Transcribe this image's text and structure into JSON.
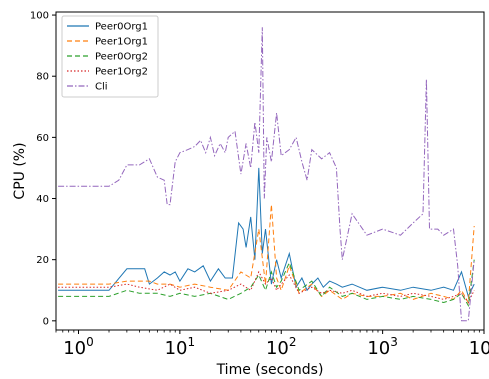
{
  "chart_data": {
    "type": "line",
    "title": "",
    "xlabel": "Time (seconds)",
    "ylabel": "CPU (%)",
    "xscale": "log",
    "xlim": [
      0.6,
      10000
    ],
    "ylim": [
      -3,
      101
    ],
    "x_ticks": [
      {
        "base": "10",
        "exp": "0"
      },
      {
        "base": "10",
        "exp": "1"
      },
      {
        "base": "10",
        "exp": "2"
      },
      {
        "base": "10",
        "exp": "3"
      },
      {
        "base": "10",
        "exp": "4"
      }
    ],
    "x_tick_values": [
      1,
      10,
      100,
      1000,
      10000
    ],
    "y_ticks": [
      "0",
      "20",
      "40",
      "60",
      "80",
      "100"
    ],
    "y_tick_values": [
      0,
      20,
      40,
      60,
      80,
      100
    ],
    "grid": false,
    "legend_position": "top-left",
    "series": [
      {
        "name": "Peer0Org1",
        "color": "#1f77b4",
        "dash": "solid",
        "points": [
          [
            0.63,
            10
          ],
          [
            2,
            10
          ],
          [
            3,
            17
          ],
          [
            4.5,
            17
          ],
          [
            5,
            12
          ],
          [
            6,
            14
          ],
          [
            7,
            16
          ],
          [
            8,
            15
          ],
          [
            9,
            16
          ],
          [
            10,
            13
          ],
          [
            12,
            17
          ],
          [
            14,
            16
          ],
          [
            17,
            18
          ],
          [
            20,
            13
          ],
          [
            24,
            17
          ],
          [
            28,
            14
          ],
          [
            33,
            14
          ],
          [
            38,
            32
          ],
          [
            42,
            30
          ],
          [
            45,
            24
          ],
          [
            50,
            34
          ],
          [
            55,
            20
          ],
          [
            60,
            50
          ],
          [
            65,
            22
          ],
          [
            70,
            30
          ],
          [
            80,
            12
          ],
          [
            90,
            20
          ],
          [
            100,
            14
          ],
          [
            120,
            22
          ],
          [
            140,
            11
          ],
          [
            160,
            14
          ],
          [
            180,
            10
          ],
          [
            200,
            12
          ],
          [
            230,
            14
          ],
          [
            260,
            11
          ],
          [
            300,
            13
          ],
          [
            350,
            12
          ],
          [
            400,
            11
          ],
          [
            500,
            12
          ],
          [
            700,
            10
          ],
          [
            1000,
            11
          ],
          [
            1500,
            10
          ],
          [
            2000,
            11
          ],
          [
            3000,
            10
          ],
          [
            4000,
            11
          ],
          [
            5000,
            10
          ],
          [
            6000,
            16
          ],
          [
            7000,
            8
          ],
          [
            8000,
            12
          ]
        ]
      },
      {
        "name": "Peer1Org1",
        "color": "#ff7f0e",
        "dash": "dashed",
        "points": [
          [
            0.63,
            12
          ],
          [
            2,
            12
          ],
          [
            3,
            13
          ],
          [
            5,
            13
          ],
          [
            6,
            12
          ],
          [
            8,
            12
          ],
          [
            10,
            11
          ],
          [
            14,
            12
          ],
          [
            20,
            11
          ],
          [
            30,
            10
          ],
          [
            40,
            16
          ],
          [
            50,
            14
          ],
          [
            60,
            30
          ],
          [
            70,
            12
          ],
          [
            80,
            38
          ],
          [
            90,
            14
          ],
          [
            100,
            10
          ],
          [
            120,
            18
          ],
          [
            150,
            9
          ],
          [
            200,
            12
          ],
          [
            250,
            8
          ],
          [
            300,
            10
          ],
          [
            400,
            7
          ],
          [
            500,
            9
          ],
          [
            700,
            8
          ],
          [
            1000,
            8
          ],
          [
            1500,
            9
          ],
          [
            2000,
            7
          ],
          [
            3000,
            9
          ],
          [
            4000,
            8
          ],
          [
            5000,
            7
          ],
          [
            6000,
            10
          ],
          [
            7000,
            6
          ],
          [
            8000,
            31
          ]
        ]
      },
      {
        "name": "Peer0Org2",
        "color": "#2ca02c",
        "dash": "dashed",
        "points": [
          [
            0.63,
            8
          ],
          [
            2,
            8
          ],
          [
            3,
            10
          ],
          [
            4,
            9
          ],
          [
            6,
            9
          ],
          [
            8,
            8
          ],
          [
            10,
            9
          ],
          [
            14,
            8
          ],
          [
            20,
            9
          ],
          [
            30,
            7
          ],
          [
            40,
            9
          ],
          [
            50,
            11
          ],
          [
            60,
            15
          ],
          [
            70,
            10
          ],
          [
            80,
            16
          ],
          [
            90,
            11
          ],
          [
            100,
            13
          ],
          [
            120,
            19
          ],
          [
            150,
            10
          ],
          [
            200,
            13
          ],
          [
            250,
            8
          ],
          [
            300,
            11
          ],
          [
            400,
            8
          ],
          [
            500,
            9
          ],
          [
            700,
            7
          ],
          [
            1000,
            8
          ],
          [
            1500,
            7
          ],
          [
            2000,
            8
          ],
          [
            3000,
            7
          ],
          [
            4000,
            6
          ],
          [
            5000,
            7
          ],
          [
            6000,
            9
          ],
          [
            7000,
            5
          ],
          [
            8000,
            20
          ]
        ]
      },
      {
        "name": "Peer1Org2",
        "color": "#d62728",
        "dash": "dotted",
        "points": [
          [
            0.63,
            11
          ],
          [
            2,
            11
          ],
          [
            3,
            12
          ],
          [
            4,
            11
          ],
          [
            6,
            10
          ],
          [
            8,
            12
          ],
          [
            10,
            10
          ],
          [
            14,
            11
          ],
          [
            20,
            9
          ],
          [
            30,
            10
          ],
          [
            40,
            12
          ],
          [
            50,
            10
          ],
          [
            60,
            16
          ],
          [
            70,
            12
          ],
          [
            80,
            14
          ],
          [
            90,
            10
          ],
          [
            100,
            12
          ],
          [
            120,
            15
          ],
          [
            150,
            9
          ],
          [
            200,
            11
          ],
          [
            250,
            9
          ],
          [
            300,
            10
          ],
          [
            400,
            9
          ],
          [
            500,
            10
          ],
          [
            700,
            8
          ],
          [
            1000,
            9
          ],
          [
            1500,
            8
          ],
          [
            2000,
            9
          ],
          [
            3000,
            8
          ],
          [
            4000,
            7
          ],
          [
            5000,
            8
          ],
          [
            6000,
            9
          ],
          [
            7000,
            6
          ],
          [
            8000,
            10
          ]
        ]
      },
      {
        "name": "Cli",
        "color": "#9467bd",
        "dash": "dashdot",
        "points": [
          [
            0.63,
            44
          ],
          [
            2,
            44
          ],
          [
            2.5,
            46
          ],
          [
            3,
            51
          ],
          [
            4,
            51
          ],
          [
            5,
            53
          ],
          [
            6,
            47
          ],
          [
            7,
            46
          ],
          [
            7.5,
            38
          ],
          [
            8,
            38
          ],
          [
            9,
            52
          ],
          [
            10,
            55
          ],
          [
            12,
            56
          ],
          [
            14,
            57
          ],
          [
            16,
            59
          ],
          [
            18,
            55
          ],
          [
            20,
            60
          ],
          [
            22,
            54
          ],
          [
            25,
            58
          ],
          [
            28,
            55
          ],
          [
            30,
            60
          ],
          [
            35,
            62
          ],
          [
            40,
            48
          ],
          [
            45,
            58
          ],
          [
            50,
            50
          ],
          [
            55,
            65
          ],
          [
            60,
            55
          ],
          [
            65,
            96
          ],
          [
            68,
            40
          ],
          [
            72,
            60
          ],
          [
            80,
            52
          ],
          [
            90,
            68
          ],
          [
            100,
            54
          ],
          [
            120,
            56
          ],
          [
            140,
            60
          ],
          [
            160,
            52
          ],
          [
            180,
            46
          ],
          [
            200,
            56
          ],
          [
            250,
            53
          ],
          [
            300,
            55
          ],
          [
            350,
            50
          ],
          [
            380,
            30
          ],
          [
            400,
            20
          ],
          [
            500,
            35
          ],
          [
            700,
            28
          ],
          [
            1000,
            30
          ],
          [
            1500,
            28
          ],
          [
            2000,
            32
          ],
          [
            2500,
            35
          ],
          [
            2700,
            79
          ],
          [
            2900,
            30
          ],
          [
            3500,
            30
          ],
          [
            4000,
            28
          ],
          [
            5000,
            30
          ],
          [
            5500,
            18
          ],
          [
            6000,
            0
          ],
          [
            6500,
            0
          ],
          [
            7000,
            0
          ],
          [
            8000,
            20
          ]
        ]
      }
    ]
  }
}
